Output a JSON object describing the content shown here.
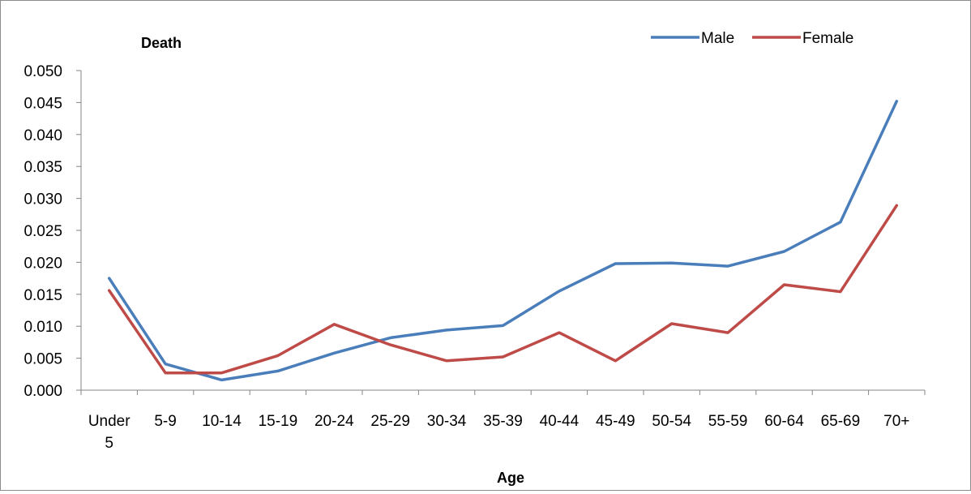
{
  "chart_data": {
    "type": "line",
    "title": "",
    "ylabel": "Death",
    "xlabel": "Age",
    "categories": [
      "Under 5",
      "5-9",
      "10-14",
      "15-19",
      "20-24",
      "25-29",
      "30-34",
      "35-39",
      "40-44",
      "45-49",
      "50-54",
      "55-59",
      "60-64",
      "65-69",
      "70+"
    ],
    "ylim": [
      0,
      0.05
    ],
    "yticks": [
      "0.000",
      "0.005",
      "0.010",
      "0.015",
      "0.020",
      "0.025",
      "0.030",
      "0.035",
      "0.040",
      "0.045",
      "0.050"
    ],
    "grid": false,
    "legend_position": "top-right",
    "series": [
      {
        "name": "Male",
        "color": "#4a7ebb",
        "values": [
          0.0175,
          0.0041,
          0.0016,
          0.003,
          0.0058,
          0.0082,
          0.0094,
          0.0101,
          0.0155,
          0.0198,
          0.0199,
          0.0194,
          0.0217,
          0.0263,
          0.0452
        ]
      },
      {
        "name": "Female",
        "color": "#be4b48",
        "values": [
          0.0156,
          0.0027,
          0.0027,
          0.0054,
          0.0103,
          0.0071,
          0.0046,
          0.0052,
          0.009,
          0.0046,
          0.0104,
          0.009,
          0.0165,
          0.0154,
          0.0289
        ]
      }
    ]
  }
}
